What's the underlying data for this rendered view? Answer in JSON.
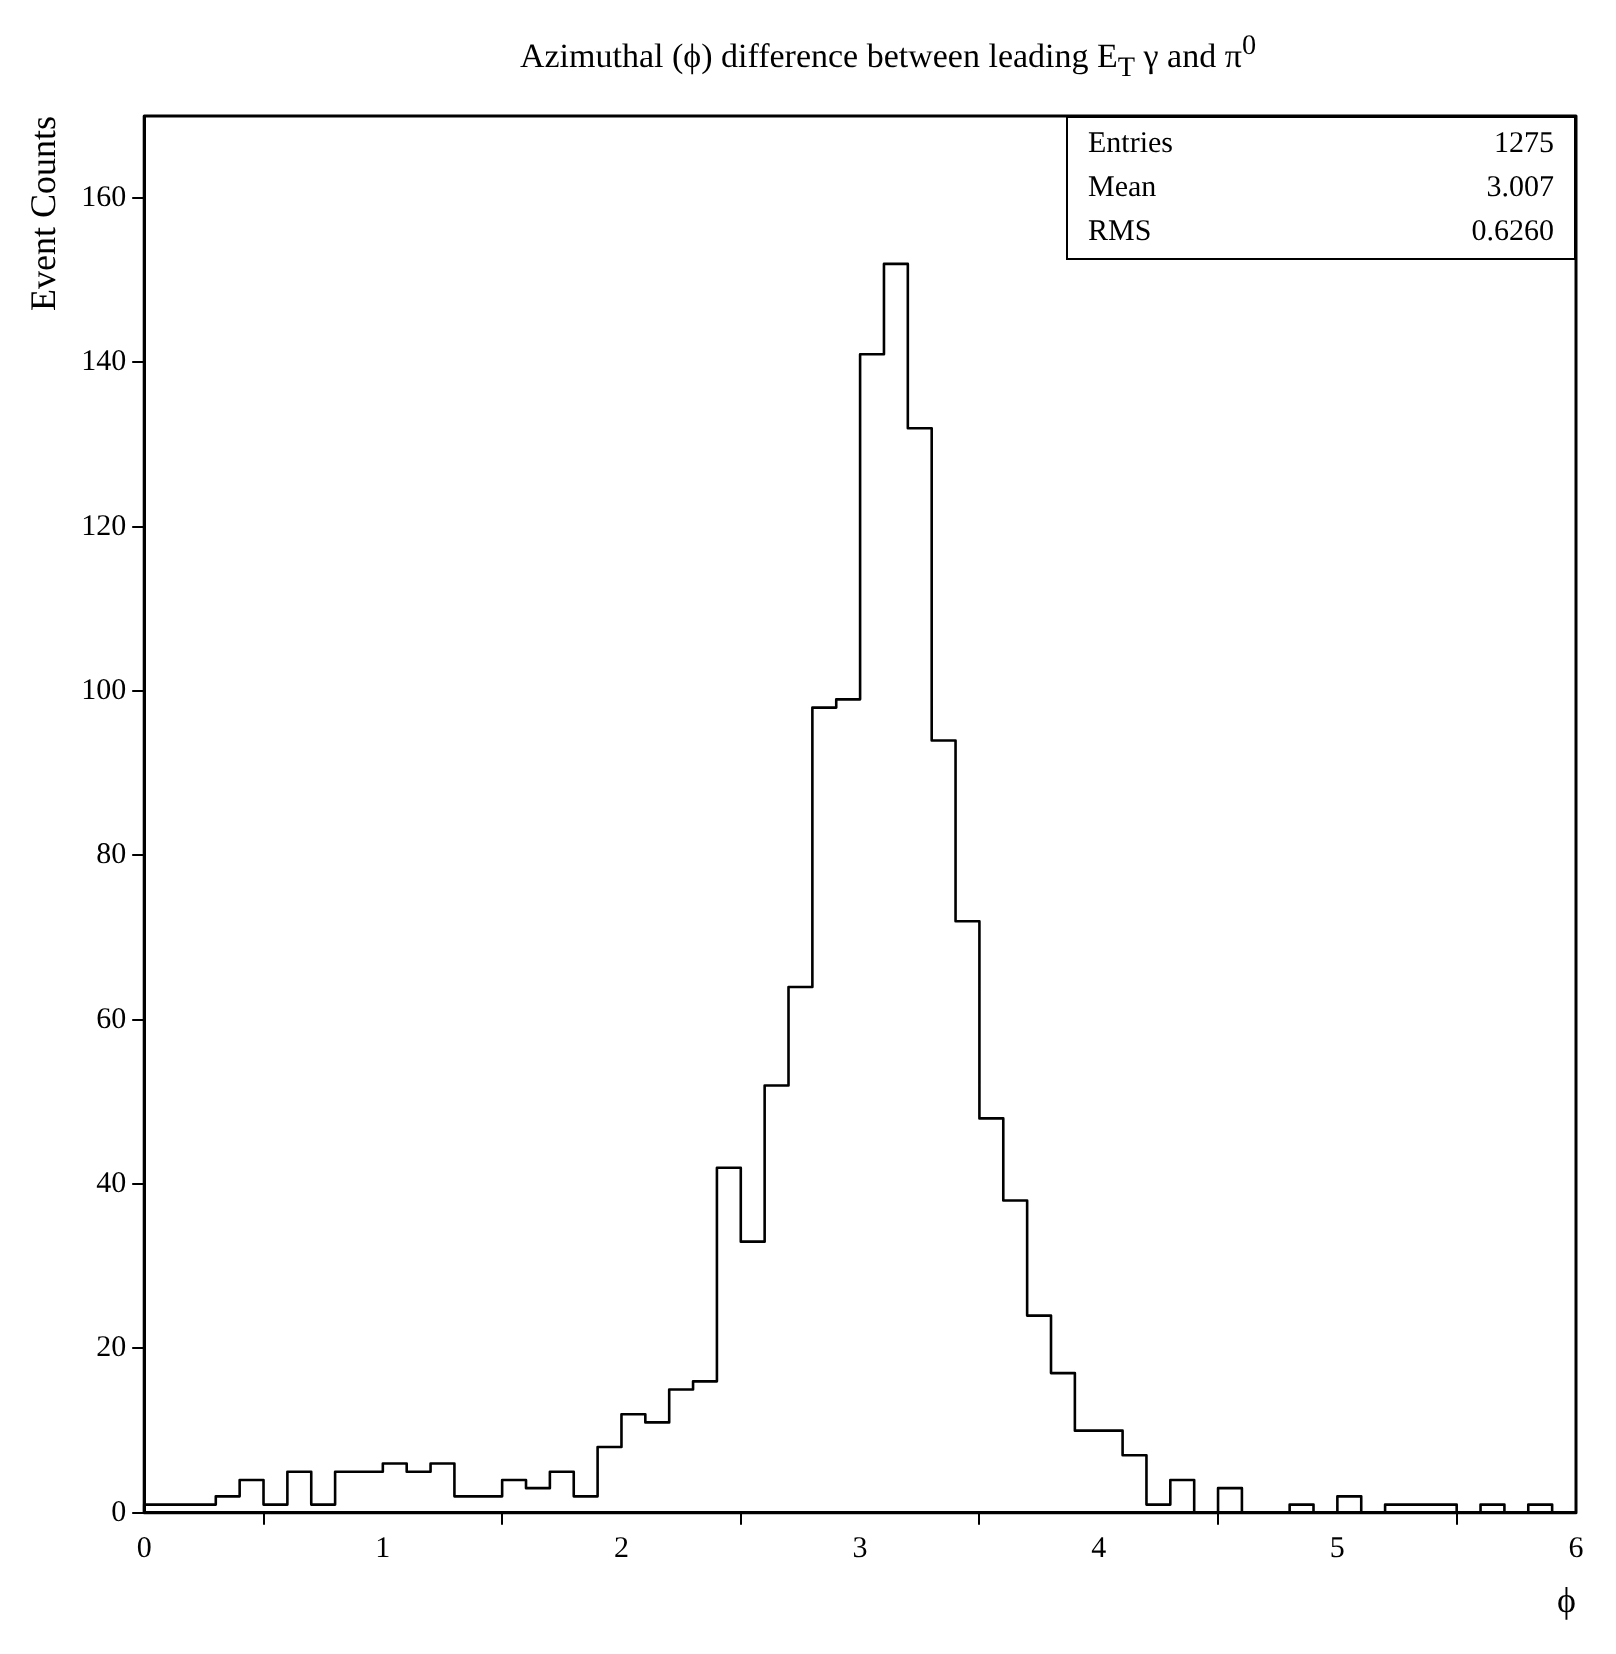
{
  "chart_data": {
    "type": "histogram",
    "title": "Azimuthal (ϕ) difference between leading E$_{T}$ γ and π$^{0}$",
    "xlabel": "ϕ",
    "ylabel": "Event Counts",
    "bins": [
      0,
      0.1,
      0.2,
      0.3,
      0.4,
      0.5,
      0.6,
      0.7,
      0.8,
      0.9,
      1.0,
      1.1,
      1.2,
      1.3,
      1.4,
      1.5,
      1.6,
      1.7,
      1.8,
      1.9,
      2.0,
      2.1,
      2.2,
      2.3,
      2.4,
      2.5,
      2.6,
      2.7,
      2.8,
      2.9,
      3.0,
      3.1,
      3.2,
      3.3,
      3.4,
      3.5,
      3.6,
      3.7,
      3.8,
      3.9,
      4.0,
      4.1,
      4.2,
      4.3,
      4.4,
      4.5,
      4.6,
      4.7,
      4.8,
      4.9,
      5.0,
      5.1,
      5.2,
      5.3,
      5.4,
      5.5,
      5.6,
      5.7,
      5.8,
      5.9,
      6.0
    ],
    "values": [
      1,
      1,
      1,
      2,
      4,
      1,
      5,
      1,
      5,
      5,
      6,
      5,
      6,
      2,
      2,
      4,
      3,
      5,
      2,
      8,
      12,
      11,
      15,
      16,
      42,
      33,
      52,
      64,
      98,
      99,
      141,
      152,
      132,
      94,
      72,
      48,
      38,
      24,
      17,
      10,
      10,
      7,
      1,
      4,
      0,
      3,
      0,
      0,
      1,
      0,
      2,
      0,
      1,
      1,
      1,
      0,
      1,
      0,
      1,
      0
    ],
    "color": "#000000",
    "xlim": [
      0,
      6
    ],
    "xticks": [
      0,
      1,
      2,
      3,
      4,
      5,
      6
    ],
    "ylim": [
      0,
      170
    ],
    "yticks": [
      0,
      20,
      40,
      60,
      80,
      100,
      120,
      140,
      160
    ],
    "grid": false,
    "legend": false,
    "annotations": [
      "Entries",
      "1275",
      "Mean",
      "3.007",
      "RMS",
      "0.6260"
    ]
  }
}
